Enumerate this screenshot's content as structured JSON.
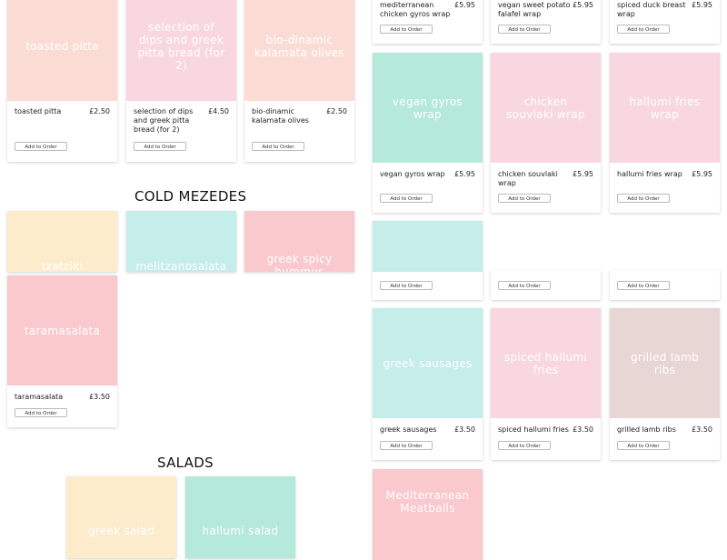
{
  "button_label": "Add to Order",
  "colors": {
    "peach": "#fbdcd5",
    "pink": "#f8d7e0",
    "rose": "#f9c9ce",
    "mint": "#b5e9da",
    "aqua": "#c5ede9",
    "cream": "#fdeccc",
    "taupe": "#e8d6d4"
  },
  "sections": {
    "cold_mezedes": "COLD MEZEDES",
    "salads": "SALADS"
  },
  "left_top": [
    {
      "image_text": "toasted pitta",
      "name": "toasted pitta",
      "price": "£2.50"
    },
    {
      "image_text": "selection of dips and greek pitta bread (for 2)",
      "name": "selection of dips and greek pitta bread (for 2)",
      "price": "£4.50"
    },
    {
      "image_text": "bio-dinamic kalamata olives",
      "name": "bio-dinamic kalamata olives",
      "price": "£2.50"
    }
  ],
  "cold_mezedes": [
    {
      "image_text": "tzatziki"
    },
    {
      "image_text": "melitzanosalata"
    },
    {
      "image_text": "greek spicy hummus"
    },
    {
      "image_text": "taramasalata",
      "name": "taramasalata",
      "price": "£3.50"
    }
  ],
  "salads": [
    {
      "image_text": "greek salad"
    },
    {
      "image_text": "hallumi salad"
    }
  ],
  "right_row1": [
    {
      "name": "mediterranean chicken gyros wrap",
      "price": "£5.95"
    },
    {
      "name": "vegan sweet potato falafel wrap",
      "price": "£5.95"
    },
    {
      "name": "spiced duck breast wrap",
      "price": "£5.95"
    }
  ],
  "right_row2": [
    {
      "image_text": "vegan gyros wrap",
      "name": "vegan gyros wrap",
      "price": "£5.95"
    },
    {
      "image_text": "chicken souvlaki wrap",
      "name": "chicken souvlaki wrap",
      "price": "£5.95"
    },
    {
      "image_text": "hallumi fries wrap",
      "name": "hallumi fries wrap",
      "price": "£5.95"
    }
  ],
  "right_row4": [
    {
      "image_text": "greek sausages",
      "name": "greek sausages",
      "price": "£3.50"
    },
    {
      "image_text": "spiced hallumi fries",
      "name": "spiced hallumi fries",
      "price": "£3.50"
    },
    {
      "image_text": "grilled lamb ribs",
      "name": "grilled lamb ribs",
      "price": "£3.50"
    }
  ],
  "right_row5": [
    {
      "image_text": "Mediterranean Meatballs"
    }
  ]
}
